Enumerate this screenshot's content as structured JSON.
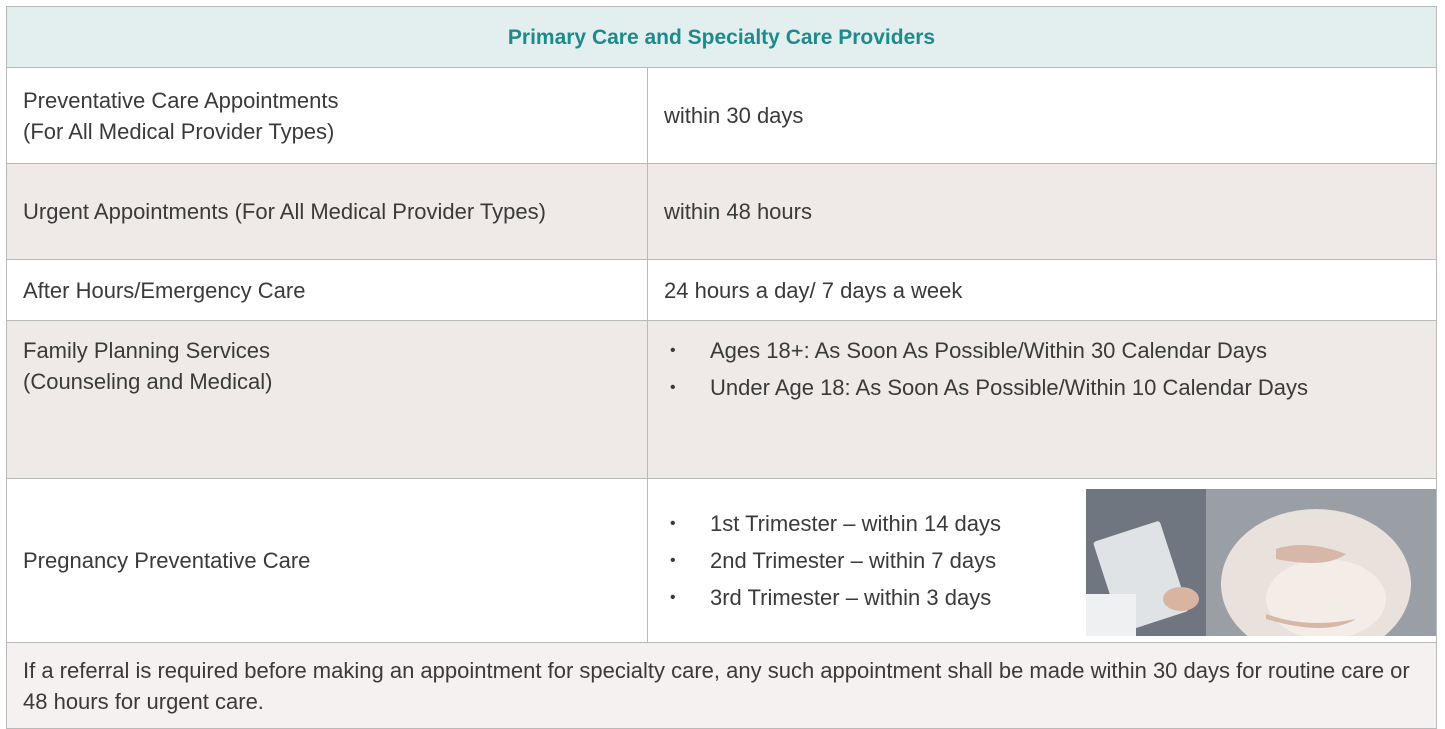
{
  "header": {
    "title": "Primary Care and Specialty Care Providers"
  },
  "table": {
    "rows": [
      {
        "label": "Preventative Care Appointments\n(For All Medical Provider Types)",
        "value": "within 30 days"
      },
      {
        "label": "Urgent Appointments (For All Medical Provider Types)",
        "value": "within 48 hours"
      },
      {
        "label": "After Hours/Emergency Care",
        "value": "24 hours a day/ 7 days a week"
      },
      {
        "label": "Family Planning Services\n(Counseling and Medical)",
        "items": [
          "Ages 18+: As Soon As Possible/Within 30 Calendar Days",
          "Under Age 18: As Soon As Possible/Within 10 Calendar Days"
        ]
      },
      {
        "label": "Pregnancy Preventative Care",
        "items": [
          "1st Trimester – within 14 days",
          "2nd Trimester – within 7 days",
          "3rd Trimester – within 3 days"
        ]
      }
    ]
  },
  "footer": {
    "text": "If a referral is required before making an appointment for specialty care, any such appointment shall be made within 30 days for routine care or 48 hours for urgent care."
  }
}
